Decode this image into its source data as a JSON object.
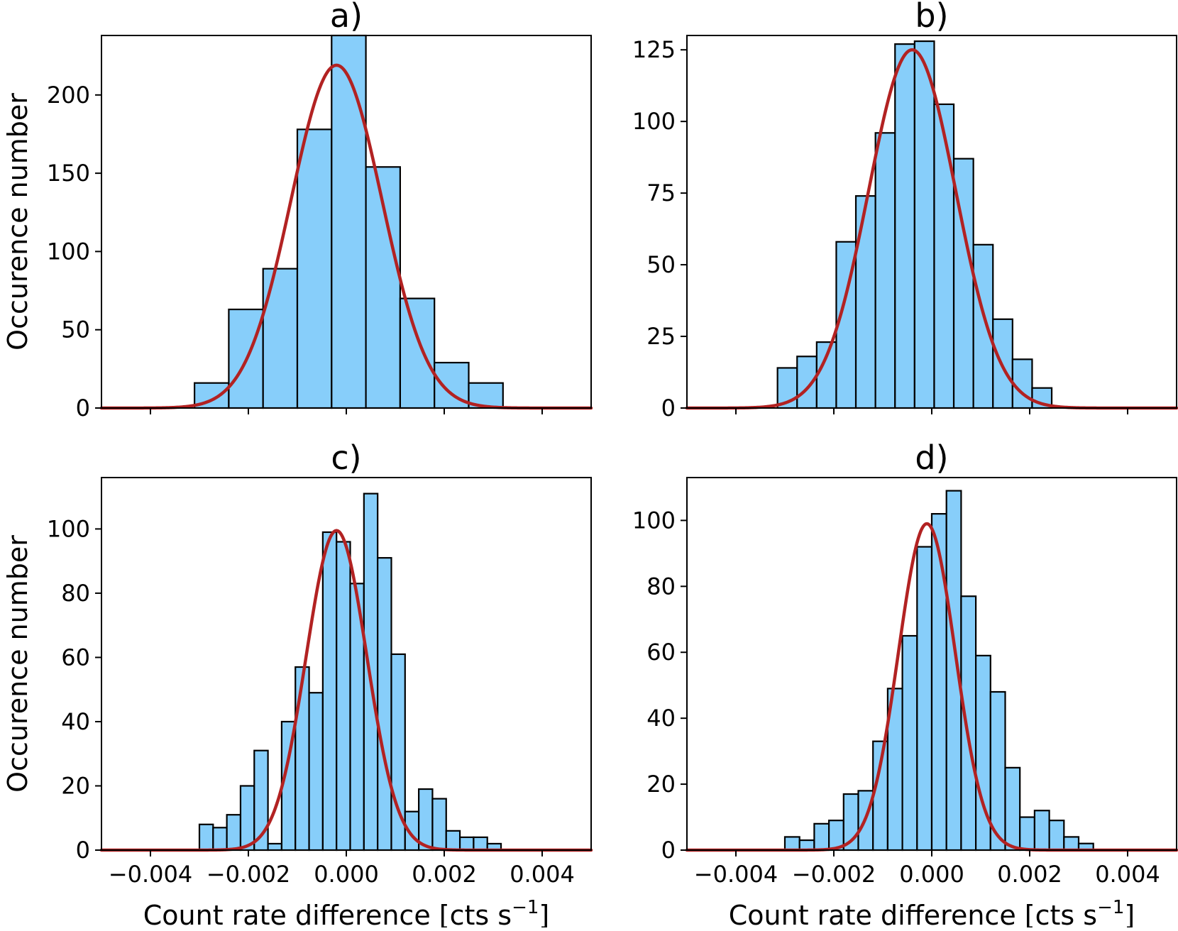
{
  "figure": {
    "xlabel": "Count rate difference [cts s",
    "xlabel_exp": "−1",
    "xlabel_close": "]",
    "ylabel": "Occurence number"
  },
  "colors": {
    "bar_fill": "#87CEFA",
    "bar_edge": "#000000",
    "fit_curve": "#B22222",
    "axes": "#000000",
    "background": "#FFFFFF"
  },
  "chart_data": [
    {
      "type": "bar",
      "title": "a)",
      "subtype": "histogram",
      "xlim": [
        -0.005,
        0.005
      ],
      "ylim": [
        0,
        238
      ],
      "xticks": [
        -0.004,
        -0.002,
        0.0,
        0.002,
        0.004
      ],
      "xtick_labels": [
        "−0.004",
        "−0.002",
        "0.000",
        "0.002",
        "0.004"
      ],
      "yticks": [
        0,
        50,
        100,
        150,
        200
      ],
      "bin_edges": [
        -0.0031,
        -0.0024,
        -0.0017,
        -0.001,
        -0.0003,
        0.0004,
        0.0011,
        0.0018,
        0.0025,
        0.0032
      ],
      "counts": [
        16,
        63,
        89,
        178,
        238,
        154,
        70,
        29,
        16
      ],
      "fit": {
        "amplitude": 219,
        "mean": -0.0002,
        "sigma": 0.00093
      }
    },
    {
      "type": "bar",
      "title": "b)",
      "subtype": "histogram",
      "xlim": [
        -0.005,
        0.005
      ],
      "ylim": [
        0,
        130
      ],
      "xticks": [
        -0.004,
        -0.002,
        0.0,
        0.002,
        0.004
      ],
      "xtick_labels": [
        "−0.004",
        "−0.002",
        "0.000",
        "0.002",
        "0.004"
      ],
      "yticks": [
        0,
        25,
        50,
        75,
        100,
        125
      ],
      "bin_edges": [
        -0.00315,
        -0.00275,
        -0.00235,
        -0.00195,
        -0.00155,
        -0.00115,
        -0.00075,
        -0.00035,
        5e-05,
        0.00045,
        0.00085,
        0.00125,
        0.00165,
        0.00205,
        0.00245
      ],
      "counts": [
        14,
        18,
        23,
        58,
        74,
        96,
        127,
        128,
        106,
        87,
        57,
        31,
        17,
        7
      ],
      "fit": {
        "amplitude": 125,
        "mean": -0.0004,
        "sigma": 0.00089
      }
    },
    {
      "type": "bar",
      "title": "c)",
      "subtype": "histogram",
      "xlim": [
        -0.005,
        0.005
      ],
      "ylim": [
        0,
        116
      ],
      "xticks": [
        -0.004,
        -0.002,
        0.0,
        0.002,
        0.004
      ],
      "xtick_labels": [
        "−0.004",
        "−0.002",
        "0.000",
        "0.002",
        "0.004"
      ],
      "yticks": [
        0,
        20,
        40,
        60,
        80,
        100
      ],
      "bin_edges": [
        -0.003,
        -0.00272,
        -0.00244,
        -0.00216,
        -0.00188,
        -0.0016,
        -0.00132,
        -0.00104,
        -0.00076,
        -0.00048,
        -0.0002,
        8e-05,
        0.00036,
        0.00064,
        0.00092,
        0.0012,
        0.00148,
        0.00176,
        0.00204,
        0.00232,
        0.0026,
        0.00288,
        0.00316
      ],
      "counts": [
        8,
        7,
        11,
        20,
        31,
        2,
        40,
        57,
        49,
        99,
        96,
        83,
        111,
        91,
        61,
        12,
        19,
        16,
        6,
        4,
        4,
        2
      ],
      "fit": {
        "amplitude": 99.5,
        "mean": -0.0002,
        "sigma": 0.00062
      }
    },
    {
      "type": "bar",
      "title": "d)",
      "subtype": "histogram",
      "xlim": [
        -0.005,
        0.005
      ],
      "ylim": [
        0,
        113
      ],
      "xticks": [
        -0.004,
        -0.002,
        0.0,
        0.002,
        0.004
      ],
      "xtick_labels": [
        "−0.004",
        "−0.002",
        "0.000",
        "0.002",
        "0.004"
      ],
      "yticks": [
        0,
        20,
        40,
        60,
        80,
        100
      ],
      "bin_edges": [
        -0.003,
        -0.0027,
        -0.0024,
        -0.0021,
        -0.0018,
        -0.0015,
        -0.0012,
        -0.0009,
        -0.0006,
        -0.0003,
        0.0,
        0.0003,
        0.0006,
        0.0009,
        0.0012,
        0.0015,
        0.0018,
        0.0021,
        0.0024,
        0.0027,
        0.003,
        0.0033
      ],
      "counts": [
        4,
        3,
        8,
        9,
        17,
        18,
        33,
        49,
        65,
        92,
        102,
        109,
        77,
        59,
        48,
        25,
        10,
        12,
        9,
        4,
        2
      ],
      "fit": {
        "amplitude": 99,
        "mean": -0.0001,
        "sigma": 0.00058
      }
    }
  ]
}
